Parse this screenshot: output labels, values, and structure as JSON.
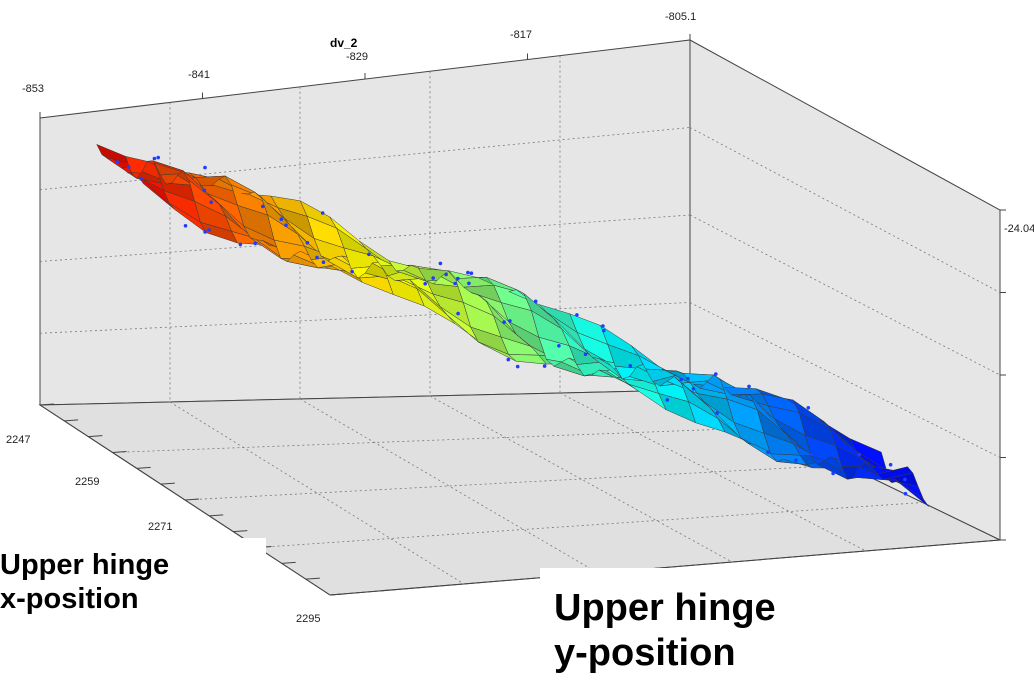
{
  "chart_data": {
    "type": "surface3d",
    "title": "",
    "colormap": [
      "#0000ff",
      "#00ffff",
      "#ffff00",
      "#ff0000"
    ],
    "x_axis": {
      "label": "dv_2",
      "ticks": [
        "-853",
        "-841",
        "-829",
        "-817",
        "-805.1"
      ]
    },
    "y_axis": {
      "label": "",
      "ticks": [
        "2247",
        "2259",
        "2271",
        "2295"
      ]
    },
    "z_axis": {
      "label": "",
      "ticks": [
        "-24.04",
        "",
        "",
        "",
        ""
      ]
    },
    "scatter_color": "#1f3cff",
    "background_color": "#e6e6e6"
  },
  "annotations": {
    "x_position": [
      "Upper hinge",
      "x-position"
    ],
    "y_position": [
      "Upper hinge",
      "y-position"
    ]
  }
}
